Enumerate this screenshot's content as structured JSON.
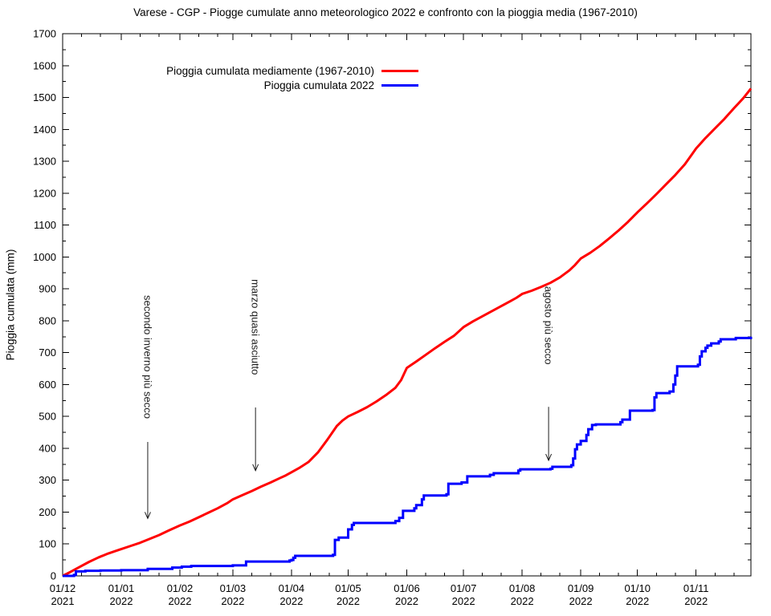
{
  "title": "Varese - CGP - Piogge cumulate anno meteorologico 2022 e confronto con la pioggia media (1967-2010)",
  "y_axis": {
    "label": "Pioggia cumulata (mm)",
    "min": 0,
    "max": 1700,
    "major_step": 100,
    "minor_step": 50,
    "tick_labels": [
      "0",
      "100",
      "200",
      "300",
      "400",
      "500",
      "600",
      "700",
      "800",
      "900",
      "1000",
      "1100",
      "1200",
      "1300",
      "1400",
      "1500",
      "1600",
      "1700"
    ]
  },
  "x_axis": {
    "ticks": [
      {
        "day": 0,
        "line1": "01/12",
        "line2": "2021"
      },
      {
        "day": 31,
        "line1": "01/01",
        "line2": "2022"
      },
      {
        "day": 62,
        "line1": "01/02",
        "line2": "2022"
      },
      {
        "day": 90,
        "line1": "01/03",
        "line2": "2022"
      },
      {
        "day": 121,
        "line1": "01/04",
        "line2": "2022"
      },
      {
        "day": 151,
        "line1": "01/05",
        "line2": "2022"
      },
      {
        "day": 182,
        "line1": "01/06",
        "line2": "2022"
      },
      {
        "day": 212,
        "line1": "01/07",
        "line2": "2022"
      },
      {
        "day": 243,
        "line1": "01/08",
        "line2": "2022"
      },
      {
        "day": 274,
        "line1": "01/09",
        "line2": "2022"
      },
      {
        "day": 304,
        "line1": "01/10",
        "line2": "2022"
      },
      {
        "day": 335,
        "line1": "01/11",
        "line2": "2022"
      }
    ],
    "minor_day_offsets": [
      10,
      20
    ],
    "max_day": 364
  },
  "legend": {
    "entries": [
      {
        "label": "Pioggia cumulata mediamente (1967-2010)",
        "color": "#ff0000"
      },
      {
        "label": "Pioggia cumulata 2022",
        "color": "#0000ff"
      }
    ]
  },
  "colors": {
    "average": "#ff0000",
    "year2022": "#0000ff",
    "axis": "#000000",
    "annotation": "#1c1c1c"
  },
  "chart_data": {
    "type": "line",
    "title": "Varese - CGP - Piogge cumulate anno meteorologico 2022 e confronto con la pioggia media (1967-2010)",
    "xlabel": "",
    "ylabel": "Pioggia cumulata (mm)",
    "x_unit": "days since 2021-12-01 (meteorological year 01/12/2021 - 30/11/2022)",
    "ylim": [
      0,
      1700
    ],
    "xlim_days": [
      0,
      364
    ],
    "grid": false,
    "legend_position": "top-left-inside",
    "series": [
      {
        "name": "Pioggia cumulata mediamente (1967-2010)",
        "color": "#ff0000",
        "style": "line",
        "points": [
          [
            0,
            0
          ],
          [
            4,
            12
          ],
          [
            9,
            28
          ],
          [
            14,
            44
          ],
          [
            19,
            58
          ],
          [
            24,
            70
          ],
          [
            28,
            78
          ],
          [
            31,
            84
          ],
          [
            36,
            94
          ],
          [
            41,
            104
          ],
          [
            46,
            116
          ],
          [
            51,
            128
          ],
          [
            56,
            142
          ],
          [
            62,
            158
          ],
          [
            67,
            170
          ],
          [
            72,
            184
          ],
          [
            77,
            198
          ],
          [
            82,
            212
          ],
          [
            87,
            228
          ],
          [
            90,
            240
          ],
          [
            95,
            253
          ],
          [
            100,
            266
          ],
          [
            105,
            280
          ],
          [
            110,
            293
          ],
          [
            115,
            307
          ],
          [
            118,
            315
          ],
          [
            121,
            325
          ],
          [
            125,
            338
          ],
          [
            130,
            357
          ],
          [
            135,
            387
          ],
          [
            140,
            427
          ],
          [
            145,
            470
          ],
          [
            148,
            487
          ],
          [
            151,
            500
          ],
          [
            156,
            514
          ],
          [
            161,
            529
          ],
          [
            166,
            547
          ],
          [
            171,
            567
          ],
          [
            176,
            590
          ],
          [
            179,
            614
          ],
          [
            182,
            652
          ],
          [
            187,
            672
          ],
          [
            192,
            693
          ],
          [
            197,
            714
          ],
          [
            202,
            734
          ],
          [
            207,
            753
          ],
          [
            212,
            780
          ],
          [
            217,
            798
          ],
          [
            222,
            814
          ],
          [
            227,
            830
          ],
          [
            232,
            846
          ],
          [
            237,
            862
          ],
          [
            240,
            872
          ],
          [
            243,
            884
          ],
          [
            248,
            894
          ],
          [
            253,
            906
          ],
          [
            258,
            919
          ],
          [
            263,
            936
          ],
          [
            268,
            958
          ],
          [
            271,
            975
          ],
          [
            274,
            995
          ],
          [
            279,
            1013
          ],
          [
            284,
            1034
          ],
          [
            289,
            1058
          ],
          [
            294,
            1083
          ],
          [
            299,
            1110
          ],
          [
            304,
            1140
          ],
          [
            309,
            1168
          ],
          [
            314,
            1197
          ],
          [
            319,
            1227
          ],
          [
            324,
            1257
          ],
          [
            329,
            1290
          ],
          [
            332,
            1315
          ],
          [
            335,
            1340
          ],
          [
            340,
            1373
          ],
          [
            345,
            1403
          ],
          [
            350,
            1433
          ],
          [
            355,
            1466
          ],
          [
            360,
            1498
          ],
          [
            364,
            1528
          ]
        ]
      },
      {
        "name": "Pioggia cumulata 2022",
        "color": "#0000ff",
        "style": "step-after",
        "points": [
          [
            0,
            0
          ],
          [
            6,
            3
          ],
          [
            7,
            14
          ],
          [
            12,
            16
          ],
          [
            20,
            17
          ],
          [
            31,
            18
          ],
          [
            45,
            22
          ],
          [
            58,
            26
          ],
          [
            63,
            29
          ],
          [
            68,
            31
          ],
          [
            90,
            33
          ],
          [
            97,
            45
          ],
          [
            120,
            48
          ],
          [
            121,
            50
          ],
          [
            122,
            57
          ],
          [
            123,
            63
          ],
          [
            143,
            66
          ],
          [
            144,
            113
          ],
          [
            146,
            120
          ],
          [
            151,
            146
          ],
          [
            153,
            160
          ],
          [
            154,
            166
          ],
          [
            176,
            172
          ],
          [
            178,
            182
          ],
          [
            180,
            204
          ],
          [
            186,
            212
          ],
          [
            187,
            222
          ],
          [
            190,
            240
          ],
          [
            191,
            252
          ],
          [
            203,
            256
          ],
          [
            204,
            289
          ],
          [
            211,
            293
          ],
          [
            214,
            312
          ],
          [
            226,
            317
          ],
          [
            228,
            322
          ],
          [
            241,
            330
          ],
          [
            242,
            334
          ],
          [
            258,
            336
          ],
          [
            259,
            342
          ],
          [
            269,
            347
          ],
          [
            270,
            368
          ],
          [
            271,
            397
          ],
          [
            272,
            412
          ],
          [
            274,
            423
          ],
          [
            277,
            442
          ],
          [
            278,
            460
          ],
          [
            280,
            473
          ],
          [
            282,
            475
          ],
          [
            295,
            482
          ],
          [
            296,
            490
          ],
          [
            300,
            518
          ],
          [
            312,
            520
          ],
          [
            313,
            560
          ],
          [
            314,
            573
          ],
          [
            321,
            578
          ],
          [
            323,
            600
          ],
          [
            324,
            628
          ],
          [
            325,
            657
          ],
          [
            336,
            662
          ],
          [
            337,
            688
          ],
          [
            338,
            704
          ],
          [
            340,
            715
          ],
          [
            341,
            722
          ],
          [
            343,
            729
          ],
          [
            347,
            735
          ],
          [
            348,
            742
          ],
          [
            356,
            746
          ],
          [
            364,
            750
          ]
        ]
      }
    ],
    "annotations": [
      {
        "text": "secondo inverno più secco",
        "day": 45,
        "text_top_value": 880,
        "arrow_from_value": 420,
        "arrow_to_value": 180
      },
      {
        "text": "marzo quasi asciutto",
        "day": 102,
        "text_top_value": 930,
        "arrow_from_value": 528,
        "arrow_to_value": 330
      },
      {
        "text": "agosto più secco",
        "day": 257,
        "text_top_value": 908,
        "arrow_from_value": 530,
        "arrow_to_value": 362
      }
    ]
  }
}
